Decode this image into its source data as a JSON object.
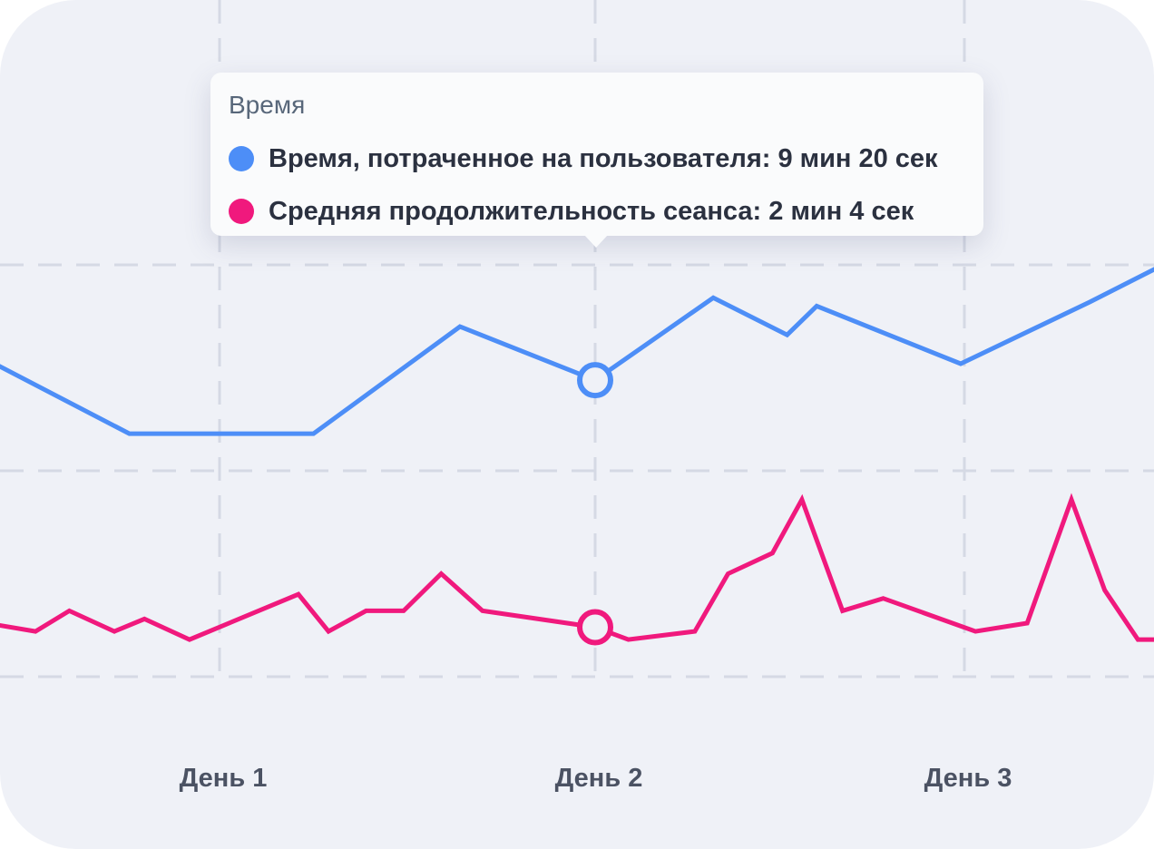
{
  "chart_data": {
    "type": "line",
    "categories": [
      "День 1",
      "День 2",
      "День 3"
    ],
    "xlabel": "",
    "ylabel": "",
    "grid": true,
    "series": [
      {
        "name": "Время, потраченное на пользователя",
        "color": "#4d8ef7",
        "points": [
          [
            -0.62,
            6.85
          ],
          [
            -0.24,
            5.95
          ],
          [
            0.25,
            5.95
          ],
          [
            0.64,
            7.25
          ],
          [
            1.0,
            6.6
          ],
          [
            1.32,
            7.6
          ],
          [
            1.52,
            7.15
          ],
          [
            1.6,
            7.5
          ],
          [
            1.99,
            6.8
          ],
          [
            2.34,
            7.55
          ],
          [
            2.56,
            8.05
          ]
        ],
        "highlight": [
          1.0,
          6.6
        ]
      },
      {
        "name": "Средняя продолжительность сеанса",
        "color": "#f0197d",
        "points": [
          [
            -0.62,
            3.65
          ],
          [
            -0.49,
            3.55
          ],
          [
            -0.4,
            3.8
          ],
          [
            -0.28,
            3.55
          ],
          [
            -0.2,
            3.7
          ],
          [
            -0.08,
            3.45
          ],
          [
            0.21,
            4.0
          ],
          [
            0.29,
            3.55
          ],
          [
            0.39,
            3.8
          ],
          [
            0.49,
            3.8
          ],
          [
            0.59,
            4.25
          ],
          [
            0.7,
            3.8
          ],
          [
            1.0,
            3.6
          ],
          [
            1.09,
            3.45
          ],
          [
            1.27,
            3.55
          ],
          [
            1.36,
            4.25
          ],
          [
            1.48,
            4.5
          ],
          [
            1.56,
            5.15
          ],
          [
            1.67,
            3.8
          ],
          [
            1.78,
            3.95
          ],
          [
            2.03,
            3.55
          ],
          [
            2.17,
            3.65
          ],
          [
            2.29,
            5.15
          ],
          [
            2.38,
            4.05
          ],
          [
            2.47,
            3.45
          ],
          [
            2.56,
            3.45
          ]
        ],
        "highlight": [
          1.0,
          3.6
        ]
      }
    ]
  },
  "tooltip": {
    "title": "Время",
    "rows": [
      {
        "color": "#4d8ef7",
        "text": "Время, потраченное на пользователя: 9 мин 20 сек"
      },
      {
        "color": "#f0197d",
        "text": "Средняя продолжительность сеанса: 2 мин 4 сек"
      }
    ]
  },
  "colors": {
    "background": "#eff1f7",
    "grid": "#d5d9e4",
    "label": "#4b5263"
  }
}
